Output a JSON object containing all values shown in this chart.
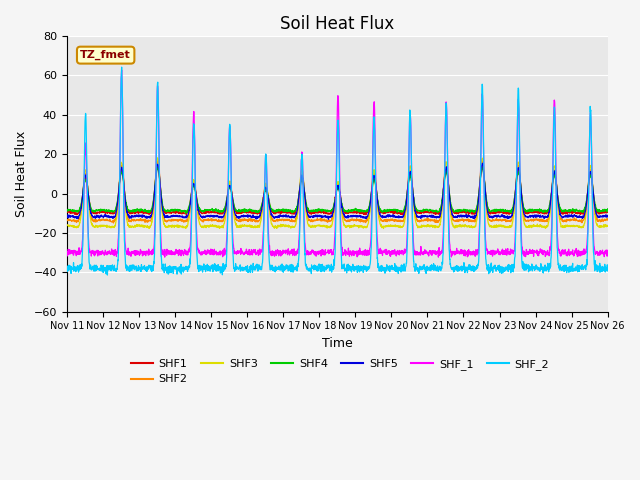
{
  "title": "Soil Heat Flux",
  "xlabel": "Time",
  "ylabel": "Soil Heat Flux",
  "ylim": [
    -60,
    80
  ],
  "yticks": [
    -60,
    -40,
    -20,
    0,
    20,
    40,
    60,
    80
  ],
  "xtick_labels": [
    "Nov 11",
    "Nov 12",
    "Nov 13",
    "Nov 14",
    "Nov 15",
    "Nov 16",
    "Nov 17",
    "Nov 18",
    "Nov 19",
    "Nov 20",
    "Nov 21",
    "Nov 22",
    "Nov 23",
    "Nov 24",
    "Nov 25",
    "Nov 26"
  ],
  "series_colors": {
    "SHF1": "#dd0000",
    "SHF2": "#ff8800",
    "SHF3": "#dddd00",
    "SHF4": "#00cc00",
    "SHF5": "#0000dd",
    "SHF_1": "#ff00ff",
    "SHF_2": "#00ccff"
  },
  "annotation_text": "TZ_fmet",
  "annotation_bg": "#ffffcc",
  "annotation_border": "#cc8800",
  "plot_bg": "#e8e8e8",
  "grid_color": "#ffffff",
  "title_fontsize": 12,
  "label_fontsize": 9,
  "tick_fontsize": 8
}
